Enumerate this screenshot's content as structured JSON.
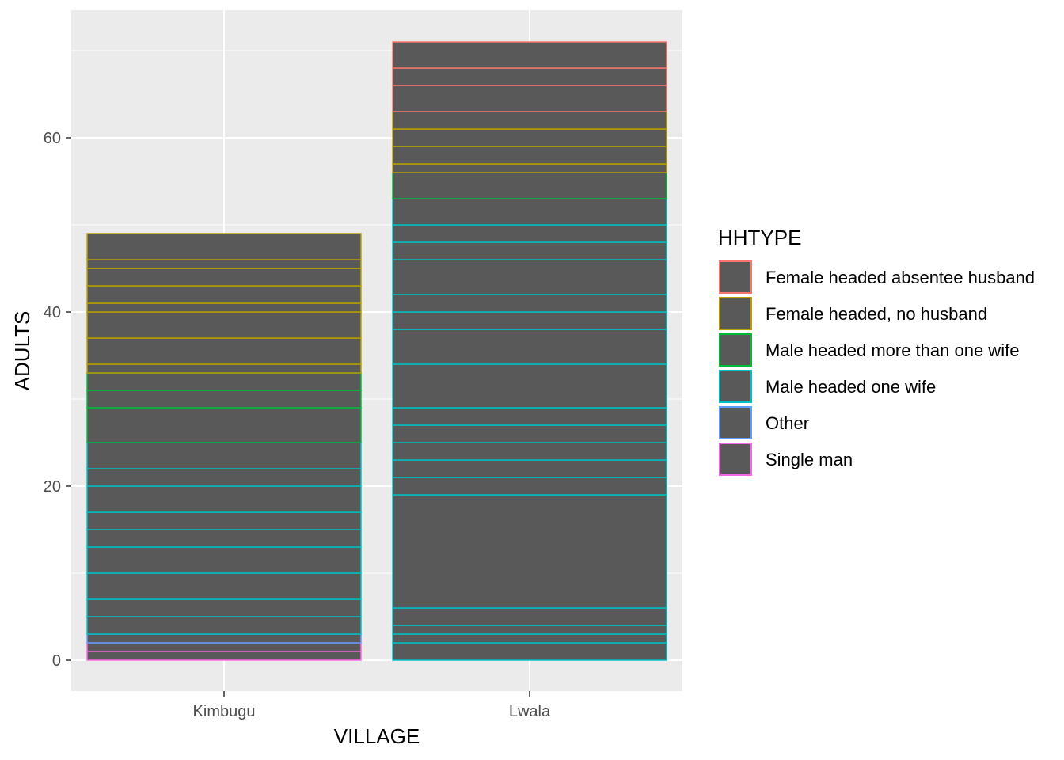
{
  "chart_data": {
    "type": "bar",
    "stacked": true,
    "xlabel": "VILLAGE",
    "ylabel": "ADULTS",
    "ylim": [
      0,
      72.5
    ],
    "yticks": [
      0,
      20,
      40,
      60
    ],
    "grid": true,
    "legend_position": "right",
    "legend_title": "HHTYPE",
    "fill_color": "#595959",
    "panel_color": "#ebebeb",
    "grid_color": "#ffffff",
    "categories": [
      "Kimbugu",
      "Lwala"
    ],
    "legend": [
      {
        "name": "Female headed absentee husband",
        "color": "#F8766D"
      },
      {
        "name": "Female headed, no husband",
        "color": "#B79F00"
      },
      {
        "name": "Male headed more than one wife",
        "color": "#00BA38"
      },
      {
        "name": "Male headed one wife",
        "color": "#00BFC4"
      },
      {
        "name": "Other",
        "color": "#619CFF"
      },
      {
        "name": "Single man",
        "color": "#F564E3"
      }
    ],
    "bars": [
      {
        "category": "Kimbugu",
        "segments": [
          {
            "group": "Female headed, no husband",
            "values": [
              3,
              1,
              2,
              2,
              1,
              3,
              3,
              1
            ]
          },
          {
            "group": "Male headed more than one wife",
            "values": [
              2,
              2,
              4
            ]
          },
          {
            "group": "Male headed one wife",
            "values": [
              3,
              2,
              3,
              2,
              2,
              3,
              3,
              2,
              2
            ]
          },
          {
            "group": "Other",
            "values": [
              1
            ]
          },
          {
            "group": "Single man",
            "values": [
              1,
              1
            ]
          }
        ]
      },
      {
        "category": "Lwala",
        "segments": [
          {
            "group": "Female headed absentee husband",
            "values": [
              3,
              2,
              3
            ]
          },
          {
            "group": "Female headed, no husband",
            "values": [
              2,
              2,
              2,
              1
            ]
          },
          {
            "group": "Male headed more than one wife",
            "values": [
              3
            ]
          },
          {
            "group": "Male headed one wife",
            "values": [
              3,
              2,
              2,
              4,
              2,
              2,
              4,
              5,
              2,
              2,
              2,
              2,
              2,
              13,
              2,
              1,
              1,
              2
            ]
          }
        ]
      }
    ]
  }
}
